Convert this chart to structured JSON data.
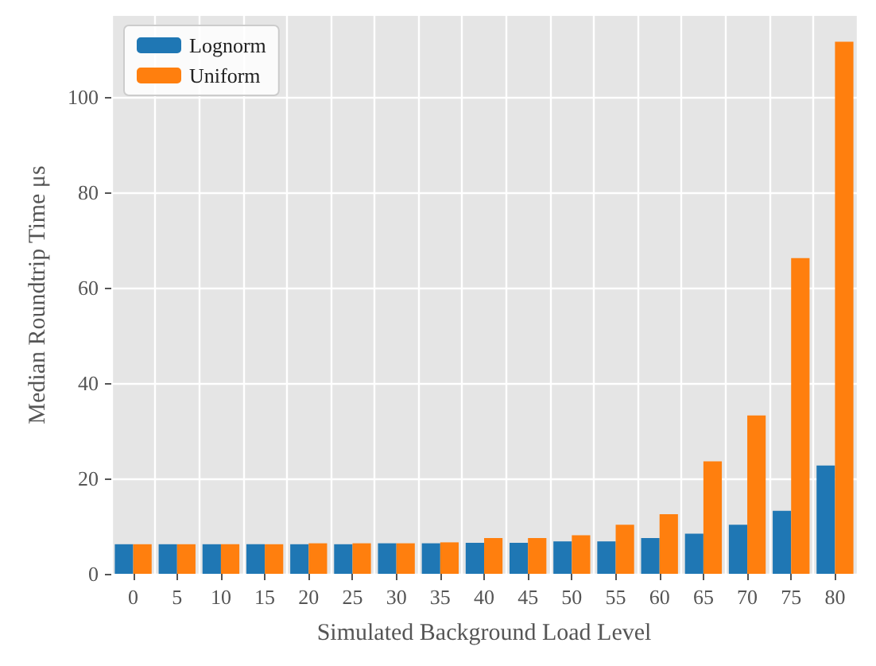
{
  "chart_data": {
    "type": "bar",
    "xlabel": "Simulated Background Load Level",
    "ylabel": "Median Roundtrip Time μs",
    "categories": [
      "0",
      "5",
      "10",
      "15",
      "20",
      "25",
      "30",
      "35",
      "40",
      "45",
      "50",
      "55",
      "60",
      "65",
      "70",
      "75",
      "80"
    ],
    "series": [
      {
        "name": "Lognorm",
        "color": "#1f77b4",
        "values": [
          6.2,
          6.2,
          6.2,
          6.2,
          6.2,
          6.2,
          6.4,
          6.4,
          6.5,
          6.5,
          6.8,
          6.8,
          7.5,
          8.4,
          10.3,
          13.2,
          22.7
        ]
      },
      {
        "name": "Uniform",
        "color": "#ff7f0e",
        "values": [
          6.2,
          6.2,
          6.2,
          6.2,
          6.4,
          6.4,
          6.4,
          6.6,
          7.5,
          7.5,
          8.1,
          10.3,
          12.5,
          23.6,
          33.2,
          66.2,
          111.6
        ]
      }
    ],
    "ylim": [
      0,
      117
    ],
    "yticks": [
      0,
      20,
      40,
      60,
      80,
      100
    ],
    "grid": true,
    "legend": "top left"
  }
}
